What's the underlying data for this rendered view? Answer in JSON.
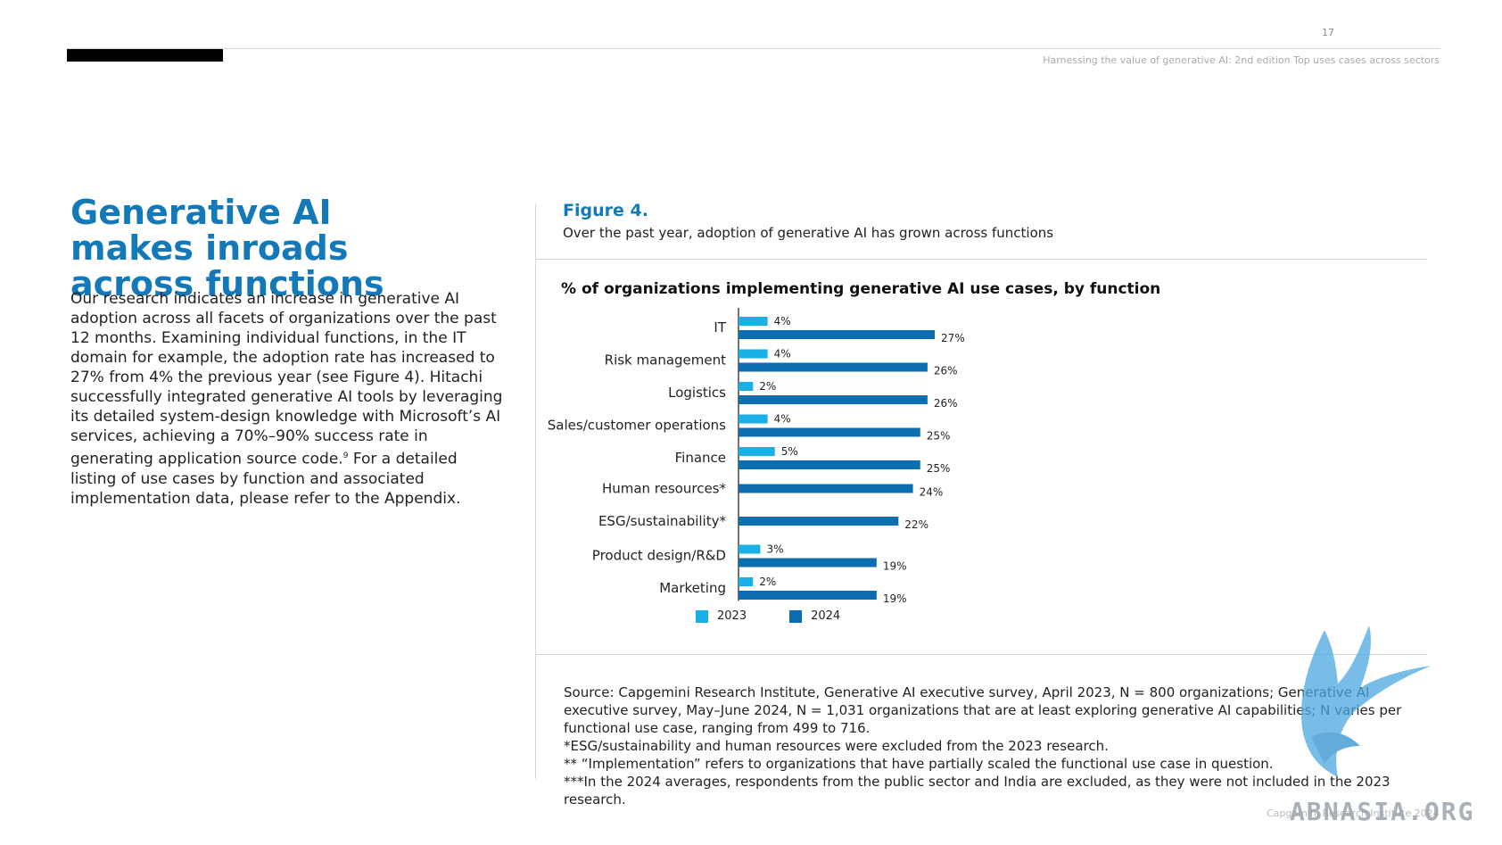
{
  "header": {
    "page_number": "17",
    "running_title": "Harnessing the value of generative AI: 2nd edition Top uses cases across sectors"
  },
  "left": {
    "title": "Generative AI makes inroads across functions",
    "body_text": "Our research indicates an increase in generative AI adoption across all facets of organizations over the past 12 months. Examining individual functions, in the IT domain for example, the adoption rate has increased to 27% from 4% the previous year (see Figure 4). Hitachi successfully integrated generative AI tools by leveraging its detailed system-design knowledge with Microsoft’s AI services, achieving a 70%–90% success rate in generating application source code.",
    "body_footnote": "9",
    "body_text_2": " For a detailed listing of use cases by function and associated implementation data, please refer to the Appendix."
  },
  "figure": {
    "label": "Figure 4.",
    "caption": "Over the past year, adoption of generative AI has grown across functions"
  },
  "chart_data": {
    "type": "bar",
    "orientation": "horizontal",
    "title": "% of organizations implementing generative AI use cases, by function",
    "categories": [
      "IT",
      "Risk management",
      "Logistics",
      "Sales/customer operations",
      "Finance",
      "Human resources*",
      "ESG/sustainability*",
      "Product design/R&D",
      "Marketing"
    ],
    "series": [
      {
        "name": "2023",
        "color": "#1ab0e6",
        "values": [
          4,
          4,
          2,
          4,
          5,
          null,
          null,
          3,
          2
        ]
      },
      {
        "name": "2024",
        "color": "#0b6eb0",
        "values": [
          27,
          26,
          26,
          25,
          25,
          24,
          22,
          19,
          19
        ]
      }
    ],
    "value_suffix": "%",
    "legend_position": "bottom",
    "grid": false
  },
  "legend": {
    "label_2023": "2023",
    "label_2024": "2024",
    "color_2023": "#1ab0e6",
    "color_2024": "#0b6eb0"
  },
  "source_notes": [
    "Source: Capgemini Research Institute, Generative AI executive survey, April 2023, N = 800 organizations; Generative AI executive survey, May–June 2024, N = 1,031 organizations that are at least exploring generative AI capabilities; N varies per functional use case, ranging from 499 to 716.",
    "*ESG/sustainability and human resources were excluded from the 2023 research.",
    "** “Implementation” refers to organizations that have partially scaled the functional use case in question.",
    "***In the 2024 averages, respondents from the public sector and India are excluded, as they were not included in the 2023 research."
  ],
  "footer": {
    "text": "Capgemini Research Institute 2024"
  },
  "watermark": {
    "text": "ABNASIA.ORG",
    "icon": "bird-logo-icon",
    "color": "#4aa8e0"
  }
}
